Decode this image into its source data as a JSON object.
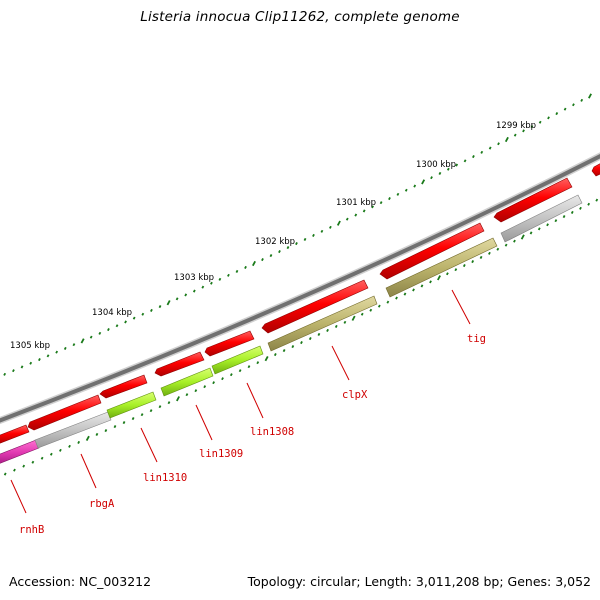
{
  "title": "Listeria innocua Clip11262, complete genome",
  "footer": {
    "accession": "Accession: NC_003212",
    "summary": "Topology: circular; Length: 3,011,208 bp; Genes: 3,052"
  },
  "scale_labels": [
    "1305 kbp",
    "1304 kbp",
    "1303 kbp",
    "1302 kbp",
    "1301 kbp",
    "1300 kbp",
    "1299 kbp"
  ],
  "gene_labels": [
    "rnhB",
    "rbgA",
    "lin1310",
    "lin1309",
    "lin1308",
    "clpX",
    "tig"
  ],
  "colors": {
    "backbone": "#777777",
    "gene_red": "#ff0000",
    "cds_gray": "#c8c8c8",
    "cds_green": "#b0f030",
    "cds_olive": "#c0b870",
    "cds_magenta": "#e040b0",
    "tick": "#1a7a1a",
    "label_red": "#d00000"
  }
}
